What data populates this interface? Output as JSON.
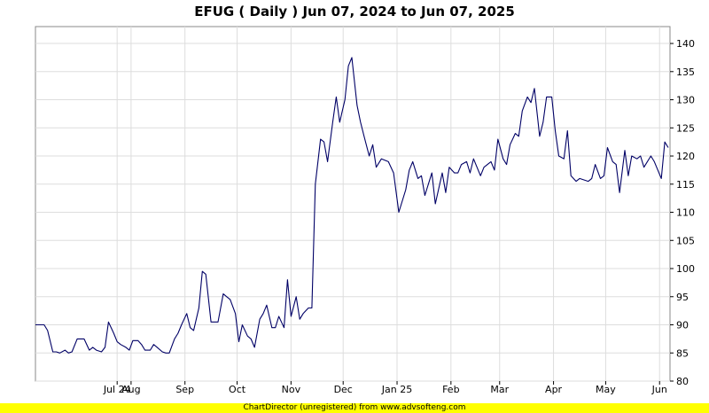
{
  "chart_data": {
    "type": "line",
    "title": "EFUG ( Daily ) Jun 07, 2024 to Jun 07, 2025",
    "xlabel": "",
    "ylabel": "",
    "ylim": [
      80,
      143
    ],
    "y_ticks": [
      80,
      85,
      90,
      95,
      100,
      105,
      110,
      115,
      120,
      125,
      130,
      135,
      140
    ],
    "x_ticks": [
      {
        "date": "2024-07-24",
        "label": "Jul 24"
      },
      {
        "date": "2024-08-01",
        "label": "Aug"
      },
      {
        "date": "2024-09-01",
        "label": "Sep"
      },
      {
        "date": "2024-10-01",
        "label": "Oct"
      },
      {
        "date": "2024-11-01",
        "label": "Nov"
      },
      {
        "date": "2024-12-01",
        "label": "Dec"
      },
      {
        "date": "2025-01-01",
        "label": "Jan 25"
      },
      {
        "date": "2025-02-01",
        "label": "Feb"
      },
      {
        "date": "2025-03-01",
        "label": "Mar"
      },
      {
        "date": "2025-04-01",
        "label": "Apr"
      },
      {
        "date": "2025-05-01",
        "label": "May"
      },
      {
        "date": "2025-06-01",
        "label": "Jun"
      }
    ],
    "x_range": [
      "2024-06-07",
      "2025-06-07"
    ],
    "grid": true,
    "legend": "none",
    "line_color": "#000066",
    "series": [
      {
        "x": [
          "2024-06-07",
          "2024-06-10",
          "2024-06-12",
          "2024-06-14",
          "2024-06-17",
          "2024-06-19",
          "2024-06-21",
          "2024-06-24",
          "2024-06-26",
          "2024-06-28",
          "2024-07-01",
          "2024-07-03",
          "2024-07-05",
          "2024-07-08",
          "2024-07-10",
          "2024-07-12",
          "2024-07-15",
          "2024-07-17",
          "2024-07-19",
          "2024-07-22",
          "2024-07-24",
          "2024-07-26",
          "2024-07-29",
          "2024-07-31",
          "2024-08-02",
          "2024-08-05",
          "2024-08-07",
          "2024-08-09",
          "2024-08-12",
          "2024-08-14",
          "2024-08-16",
          "2024-08-19",
          "2024-08-21",
          "2024-08-23",
          "2024-08-26",
          "2024-08-28",
          "2024-08-30",
          "2024-09-02",
          "2024-09-04",
          "2024-09-06",
          "2024-09-09",
          "2024-09-11",
          "2024-09-13",
          "2024-09-16",
          "2024-09-18",
          "2024-09-20",
          "2024-09-23",
          "2024-09-25",
          "2024-09-27",
          "2024-09-30",
          "2024-10-02",
          "2024-10-04",
          "2024-10-07",
          "2024-10-09",
          "2024-10-11",
          "2024-10-14",
          "2024-10-16",
          "2024-10-18",
          "2024-10-21",
          "2024-10-23",
          "2024-10-25",
          "2024-10-28",
          "2024-10-30",
          "2024-11-01",
          "2024-11-04",
          "2024-11-06",
          "2024-11-08",
          "2024-11-11",
          "2024-11-13",
          "2024-11-15",
          "2024-11-18",
          "2024-11-20",
          "2024-11-22",
          "2024-11-25",
          "2024-11-27",
          "2024-11-29",
          "2024-12-02",
          "2024-12-04",
          "2024-12-06",
          "2024-12-09",
          "2024-12-11",
          "2024-12-13",
          "2024-12-16",
          "2024-12-18",
          "2024-12-20",
          "2024-12-23",
          "2024-12-27",
          "2024-12-30",
          "2025-01-02",
          "2025-01-06",
          "2025-01-08",
          "2025-01-10",
          "2025-01-13",
          "2025-01-15",
          "2025-01-17",
          "2025-01-21",
          "2025-01-23",
          "2025-01-27",
          "2025-01-29",
          "2025-01-31",
          "2025-02-03",
          "2025-02-05",
          "2025-02-07",
          "2025-02-10",
          "2025-02-12",
          "2025-02-14",
          "2025-02-18",
          "2025-02-20",
          "2025-02-24",
          "2025-02-26",
          "2025-02-28",
          "2025-03-03",
          "2025-03-05",
          "2025-03-07",
          "2025-03-10",
          "2025-03-12",
          "2025-03-14",
          "2025-03-17",
          "2025-03-19",
          "2025-03-21",
          "2025-03-24",
          "2025-03-26",
          "2025-03-28",
          "2025-03-31",
          "2025-04-02",
          "2025-04-04",
          "2025-04-07",
          "2025-04-09",
          "2025-04-11",
          "2025-04-14",
          "2025-04-16",
          "2025-04-21",
          "2025-04-23",
          "2025-04-25",
          "2025-04-28",
          "2025-04-30",
          "2025-05-02",
          "2025-05-05",
          "2025-05-07",
          "2025-05-09",
          "2025-05-12",
          "2025-05-14",
          "2025-05-16",
          "2025-05-19",
          "2025-05-21",
          "2025-05-23",
          "2025-05-27",
          "2025-05-29",
          "2025-06-02",
          "2025-06-04",
          "2025-06-06"
        ],
        "y": [
          90,
          90,
          90,
          89,
          85.2,
          85.2,
          85,
          85.5,
          85,
          85.2,
          87.5,
          87.5,
          87.5,
          85.5,
          86,
          85.5,
          85.2,
          86,
          90.5,
          88.5,
          87,
          86.5,
          86,
          85.5,
          87.2,
          87.2,
          86.5,
          85.5,
          85.5,
          86.5,
          86,
          85.2,
          85,
          85,
          87.5,
          88.5,
          90,
          92,
          89.5,
          89,
          93,
          99.5,
          99,
          90.5,
          90.5,
          90.5,
          95.5,
          95,
          94.5,
          92,
          87,
          90,
          88,
          87.5,
          86,
          91,
          92,
          93.5,
          89.5,
          89.5,
          91.5,
          89.5,
          98,
          91.5,
          95,
          91,
          92,
          93,
          93,
          115,
          123,
          122.5,
          119,
          126,
          130.5,
          126,
          130,
          136,
          137.5,
          129,
          126,
          123.5,
          120,
          122,
          118,
          119.5,
          119,
          117,
          110,
          114,
          117.5,
          119,
          116,
          116.5,
          113,
          117,
          111.5,
          117,
          113.5,
          118,
          117,
          117,
          118.5,
          119,
          117,
          119.5,
          116.5,
          118,
          119,
          117.5,
          123,
          119.5,
          118.5,
          122,
          124,
          123.5,
          128,
          130.5,
          129.5,
          132,
          123.5,
          126,
          130.5,
          130.5,
          124.5,
          120,
          119.5,
          124.5,
          116.5,
          115.5,
          116,
          115.5,
          116,
          118.5,
          116,
          116.5,
          121.5,
          119,
          118.5,
          113.5,
          121,
          116.5,
          120,
          119.5,
          120,
          118,
          120,
          119,
          116,
          122.5,
          121.5
        ]
      }
    ]
  },
  "footer": {
    "text": "ChartDirector (unregistered) from www.advsofteng.com"
  }
}
